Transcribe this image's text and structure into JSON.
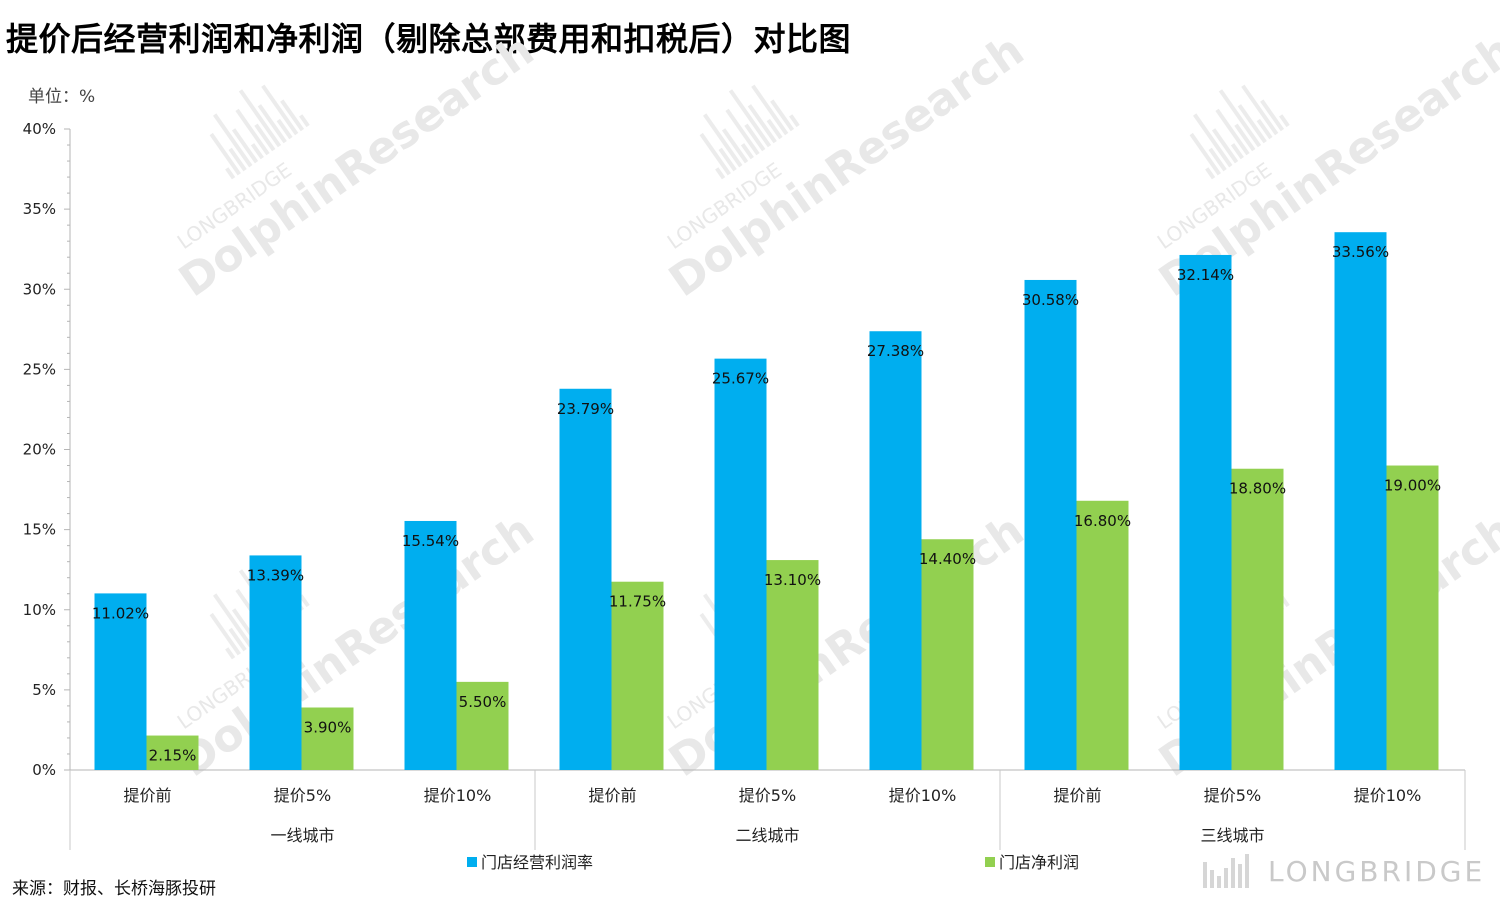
{
  "title": "提价后经营利润和净利润（剔除总部费用和扣税后）对比图",
  "unit_label": "单位：%",
  "source": "来源：财报、长桥海豚投研",
  "logo_text": "LONGBRIDGE",
  "watermark": {
    "line1": "LONGBRIDGE",
    "line2": "DolphinResearch"
  },
  "colors": {
    "operating": "#00AEEF",
    "net": "#92D050"
  },
  "chart_data": {
    "type": "bar",
    "title": "提价后经营利润和净利润（剔除总部费用和扣税后）对比图",
    "ylabel": "单位：%",
    "ylim": [
      0,
      40
    ],
    "yticks": [
      "0%",
      "5%",
      "10%",
      "15%",
      "20%",
      "25%",
      "30%",
      "35%",
      "40%"
    ],
    "categories": [
      "提价前",
      "提价5%",
      "提价10%",
      "提价前",
      "提价5%",
      "提价10%",
      "提价前",
      "提价5%",
      "提价10%"
    ],
    "groups": [
      {
        "name": "一线城市",
        "size": 3
      },
      {
        "name": "二线城市",
        "size": 3
      },
      {
        "name": "三线城市",
        "size": 3
      }
    ],
    "series": [
      {
        "name": "门店经营利润率",
        "values": [
          11.02,
          13.39,
          15.54,
          23.79,
          25.67,
          27.38,
          30.58,
          32.14,
          33.56
        ],
        "labels": [
          "11.02%",
          "13.39%",
          "15.54%",
          "23.79%",
          "25.67%",
          "27.38%",
          "30.58%",
          "32.14%",
          "33.56%"
        ]
      },
      {
        "name": "门店净利润",
        "values": [
          2.15,
          3.9,
          5.5,
          11.75,
          13.1,
          14.4,
          16.8,
          18.8,
          19.0
        ],
        "labels": [
          "2.15%",
          "3.90%",
          "5.50%",
          "11.75%",
          "13.10%",
          "14.40%",
          "16.80%",
          "18.80%",
          "19.00%"
        ]
      }
    ],
    "legend": "bottom",
    "grid": false
  }
}
